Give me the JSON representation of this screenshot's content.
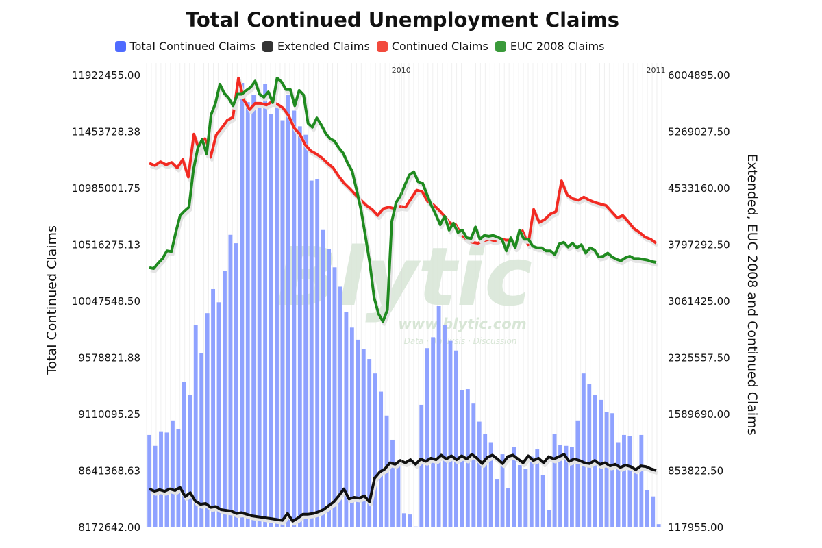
{
  "chart_data": {
    "type": "bar",
    "title": "Total Continued Unemployment Claims",
    "legend": [
      {
        "name": "Total Continued Claims",
        "color": "#4f6bff"
      },
      {
        "name": "Extended Claims",
        "color": "#333333"
      },
      {
        "name": "Continued Claims",
        "color": "#f24a3d"
      },
      {
        "name": "EUC 2008 Claims",
        "color": "#3a9a3a"
      }
    ],
    "legend_position": "top",
    "y_left_label": "Total Continued Claims",
    "y_right_label": "Extended, EUC 2008 and Continued Claims",
    "y_left_ticks": [
      "8172642.00",
      "8641368.63",
      "9110095.25",
      "9578821.88",
      "10047548.50",
      "10516275.13",
      "10985001.75",
      "11453728.38",
      "11922455.00"
    ],
    "y_right_ticks": [
      "117955.00",
      "853822.50",
      "1589690.00",
      "2325557.50",
      "3061425.00",
      "3797292.50",
      "4533160.00",
      "5269027.50",
      "6004895.00"
    ],
    "y_left_range": [
      8172642,
      11922455
    ],
    "y_right_range": [
      117955,
      6004895
    ],
    "x_labels": [
      {
        "text": "2010",
        "index": 44
      },
      {
        "text": "2011",
        "index": 88
      }
    ],
    "grid": true,
    "watermark": {
      "brand": "Blytic",
      "url": "www.blytic.com",
      "tagline": "Data · Analysis · Discussion"
    },
    "series": [
      {
        "name": "Total Continued Claims",
        "axis": "left",
        "type": "bar",
        "color": "#8fa2ff",
        "values": [
          8940000,
          8850000,
          8970000,
          8960000,
          9060000,
          8990000,
          9380000,
          9270000,
          9850000,
          9620000,
          9950000,
          10150000,
          10040000,
          10300000,
          10600000,
          10530000,
          11860000,
          11700000,
          11760000,
          11700000,
          11850000,
          11600000,
          11680000,
          11550000,
          11760000,
          11630000,
          11500000,
          11430000,
          11050000,
          11060000,
          10640000,
          10480000,
          10330000,
          10170000,
          9960000,
          9830000,
          9730000,
          9650000,
          9570000,
          9450000,
          9300000,
          9100000,
          8900000,
          8700000,
          8290000,
          8280000,
          8180000,
          9190000,
          9660000,
          9750000,
          10010000,
          9850000,
          9720000,
          9640000,
          9310000,
          9320000,
          9200000,
          9050000,
          8950000,
          8880000,
          8570000,
          8780000,
          8500000,
          8840000,
          8690000,
          8660000,
          8760000,
          8820000,
          8610000,
          8320000,
          8950000,
          8860000,
          8850000,
          8840000,
          9060000,
          9450000,
          9360000,
          9270000,
          9230000,
          9130000,
          9120000,
          8880000,
          8940000,
          8930000,
          8650000,
          8940000,
          8480000,
          8430000,
          8200000
        ]
      },
      {
        "name": "Extended Claims",
        "axis": "right",
        "type": "line",
        "color": "#111111",
        "values": [
          620000,
          590000,
          610000,
          590000,
          620000,
          600000,
          640000,
          520000,
          570000,
          460000,
          420000,
          430000,
          380000,
          390000,
          350000,
          340000,
          330000,
          300000,
          310000,
          290000,
          270000,
          260000,
          250000,
          240000,
          230000,
          220000,
          210000,
          300000,
          200000,
          240000,
          290000,
          290000,
          300000,
          320000,
          350000,
          400000,
          450000,
          530000,
          620000,
          490000,
          510000,
          500000,
          530000,
          450000,
          760000,
          840000,
          880000,
          960000,
          940000,
          990000,
          960000,
          1000000,
          940000,
          1010000,
          980000,
          1020000,
          1000000,
          1060000,
          1010000,
          1050000,
          1000000,
          1050000,
          1010000,
          1070000,
          1020000,
          950000,
          1030000,
          1060000,
          1010000,
          950000,
          1040000,
          1060000,
          1010000,
          960000,
          1050000,
          990000,
          1020000,
          960000,
          1040000,
          1010000,
          1040000,
          1070000,
          980000,
          1010000,
          990000,
          960000,
          950000,
          990000,
          940000,
          960000,
          920000,
          940000,
          900000,
          930000,
          910000,
          870000,
          920000,
          910000,
          880000,
          860000
        ]
      },
      {
        "name": "Continued Claims",
        "axis": "right",
        "type": "line",
        "color": "#f22a22",
        "values": [
          4860000,
          4830000,
          4880000,
          4840000,
          4870000,
          4800000,
          4910000,
          4680000,
          5240000,
          5020000,
          5180000,
          4940000,
          5230000,
          5320000,
          5420000,
          5460000,
          5970000,
          5680000,
          5560000,
          5640000,
          5640000,
          5620000,
          5660000,
          5630000,
          5580000,
          5480000,
          5320000,
          5240000,
          5100000,
          5020000,
          4980000,
          4930000,
          4860000,
          4800000,
          4690000,
          4600000,
          4530000,
          4450000,
          4380000,
          4310000,
          4260000,
          4180000,
          4270000,
          4290000,
          4270000,
          4300000,
          4290000,
          4400000,
          4510000,
          4490000,
          4360000,
          4320000,
          4250000,
          4170000,
          4080000,
          4060000,
          3930000,
          3870000,
          3830000,
          3820000,
          3850000,
          3870000,
          3850000,
          3880000,
          3860000,
          3860000,
          3780000,
          3980000,
          3800000,
          4260000,
          4090000,
          4130000,
          4200000,
          4230000,
          4630000,
          4450000,
          4400000,
          4380000,
          4420000,
          4380000,
          4350000,
          4330000,
          4310000,
          4230000,
          4150000,
          4180000,
          4100000,
          4010000,
          3960000,
          3900000,
          3870000,
          3820000
        ]
      },
      {
        "name": "EUC 2008 Claims",
        "axis": "right",
        "type": "line",
        "color": "#1f8a1f",
        "values": [
          3500000,
          3490000,
          3560000,
          3620000,
          3720000,
          3710000,
          3960000,
          4180000,
          4240000,
          4290000,
          4770000,
          5060000,
          5170000,
          4980000,
          5490000,
          5640000,
          5890000,
          5770000,
          5710000,
          5610000,
          5760000,
          5760000,
          5810000,
          5850000,
          5930000,
          5760000,
          5720000,
          5790000,
          5650000,
          5970000,
          5920000,
          5820000,
          5820000,
          5610000,
          5810000,
          5750000,
          5380000,
          5330000,
          5450000,
          5360000,
          5250000,
          5180000,
          5150000,
          5060000,
          4990000,
          4860000,
          4760000,
          4520000,
          4260000,
          3920000,
          3570000,
          3110000,
          2900000,
          2800000,
          2950000,
          4100000,
          4350000,
          4440000,
          4580000,
          4710000,
          4750000,
          4620000,
          4600000,
          4450000,
          4310000,
          4190000,
          4060000,
          4170000,
          3990000,
          4080000,
          3960000,
          3990000,
          3890000,
          3880000,
          4030000,
          3870000,
          3920000,
          3910000,
          3920000,
          3900000,
          3870000,
          3720000,
          3890000,
          3760000,
          3990000,
          3870000,
          3870000,
          3780000,
          3760000,
          3760000,
          3720000,
          3720000,
          3670000,
          3810000,
          3830000,
          3770000,
          3820000,
          3760000,
          3800000,
          3690000,
          3760000,
          3730000,
          3640000,
          3650000,
          3690000,
          3640000,
          3610000,
          3590000,
          3630000,
          3650000,
          3620000,
          3620000,
          3610000,
          3600000,
          3580000,
          3570000
        ]
      }
    ]
  }
}
